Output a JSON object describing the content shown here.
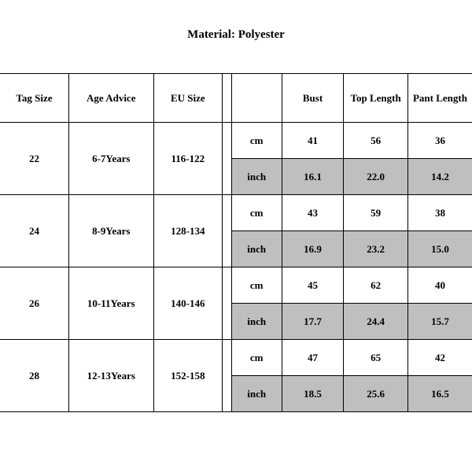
{
  "title": "Material: Polyester",
  "columns": {
    "tag_size": "Tag Size",
    "age_advice": "Age Advice",
    "eu_size": "EU Size",
    "spacer": "",
    "bust": "Bust",
    "top_length": "Top Length",
    "pant_length": "Pant Length"
  },
  "unit_labels": {
    "cm": "cm",
    "inch": "inch"
  },
  "rows": [
    {
      "tag_size": "22",
      "age_advice": "6-7Years",
      "eu_size": "116-122",
      "cm": {
        "bust": "41",
        "top_length": "56",
        "pant_length": "36"
      },
      "inch": {
        "bust": "16.1",
        "top_length": "22.0",
        "pant_length": "14.2"
      }
    },
    {
      "tag_size": "24",
      "age_advice": "8-9Years",
      "eu_size": "128-134",
      "cm": {
        "bust": "43",
        "top_length": "59",
        "pant_length": "38"
      },
      "inch": {
        "bust": "16.9",
        "top_length": "23.2",
        "pant_length": "15.0"
      }
    },
    {
      "tag_size": "26",
      "age_advice": "10-11Years",
      "eu_size": "140-146",
      "cm": {
        "bust": "45",
        "top_length": "62",
        "pant_length": "40"
      },
      "inch": {
        "bust": "17.7",
        "top_length": "24.4",
        "pant_length": "15.7"
      }
    },
    {
      "tag_size": "28",
      "age_advice": "12-13Years",
      "eu_size": "152-158",
      "cm": {
        "bust": "47",
        "top_length": "65",
        "pant_length": "42"
      },
      "inch": {
        "bust": "18.5",
        "top_length": "25.6",
        "pant_length": "16.5"
      }
    }
  ],
  "colors": {
    "shade": "#bfbfbf",
    "border": "#000000",
    "background": "#ffffff",
    "text": "#000000"
  },
  "typography": {
    "title_fontsize": 15,
    "cell_fontsize": 13,
    "font_family": "Times New Roman"
  }
}
